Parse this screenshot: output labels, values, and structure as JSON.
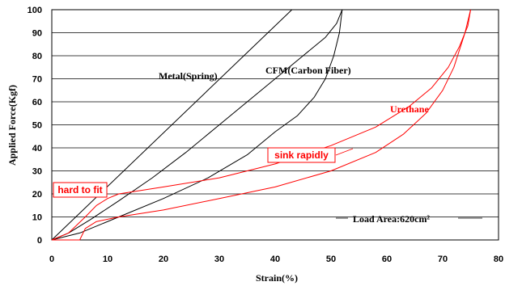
{
  "chart_data": {
    "type": "line",
    "xlabel": "Strain(%)",
    "ylabel": "Applied Force(Kgf)",
    "xlim": [
      0,
      80
    ],
    "ylim": [
      0,
      100
    ],
    "xticks": [
      "0",
      "10",
      "20",
      "30",
      "40",
      "50",
      "60",
      "70",
      "80"
    ],
    "yticks": [
      "0",
      "10",
      "20",
      "30",
      "40",
      "50",
      "60",
      "70",
      "80",
      "90",
      "100"
    ],
    "grid": "horizontal",
    "series": [
      {
        "name": "Metal(Spring)",
        "color": "#000000",
        "x": [
          0,
          43
        ],
        "y": [
          0,
          100
        ]
      },
      {
        "name": "CFM(Carbon Fiber)",
        "color": "#000000",
        "loading": {
          "x": [
            0,
            3,
            7,
            12,
            18,
            24,
            30,
            35,
            40,
            45,
            49,
            51,
            52
          ],
          "y": [
            0,
            3,
            9,
            17,
            27,
            38,
            50,
            60,
            70,
            80,
            88,
            94,
            100
          ]
        },
        "unloading": {
          "x": [
            52,
            51.5,
            50.5,
            49,
            47,
            44,
            40,
            35,
            28,
            20,
            12,
            5,
            0
          ],
          "y": [
            100,
            90,
            80,
            70,
            62,
            54,
            47,
            37,
            27,
            18,
            10,
            3,
            0
          ]
        }
      },
      {
        "name": "Urethane",
        "color": "#ff0000",
        "loading": {
          "x": [
            0,
            3,
            6,
            8,
            10,
            12,
            20,
            30,
            40,
            50,
            58,
            64,
            68,
            71,
            73,
            74.5,
            75
          ],
          "y": [
            0,
            3,
            10,
            15,
            18,
            20,
            23,
            27,
            33,
            41,
            49,
            58,
            66,
            75,
            84,
            93,
            100
          ]
        },
        "unloading": {
          "x": [
            75,
            74,
            72,
            70,
            67,
            63,
            58,
            50,
            40,
            30,
            20,
            12,
            8,
            6,
            5,
            0
          ],
          "y": [
            100,
            90,
            75,
            65,
            55,
            46,
            38,
            30,
            23,
            18,
            13,
            10,
            8,
            5,
            0,
            0
          ]
        }
      }
    ],
    "annotations": {
      "metal": "Metal(Spring)",
      "cfm": "CFM(Carbon Fiber)",
      "urethane": "Urethane",
      "sink": "sink rapidly",
      "hard": "hard to fit",
      "load_area": "Load Area:620cm²"
    }
  }
}
